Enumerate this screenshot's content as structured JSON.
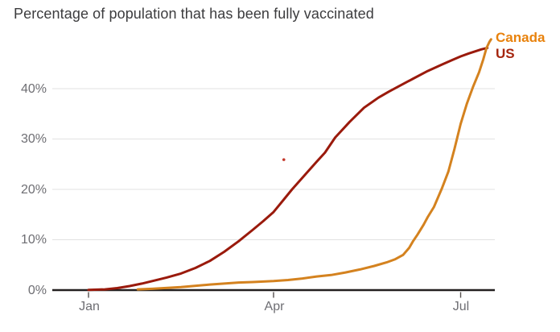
{
  "title": "Percentage of population that has been fully vaccinated",
  "colors": {
    "background": "#FFFFFF",
    "title_text": "#3C3C3E",
    "axis_label_text": "#6E6E73",
    "gridline": "#E2E2E2",
    "axis_line": "#232020",
    "tick_mark": "#55504E",
    "canada_label": "#E8820D",
    "canada_line": "#D4821F",
    "us_label": "#A5260F",
    "us_line": "#9A1A0C",
    "stray_dot": "#C4372B"
  },
  "chart_data": {
    "type": "line",
    "title": "Percentage of population that has been fully vaccinated",
    "xlabel": "",
    "ylabel": "",
    "point_format": "[days_since_jan1_2021, percent_fully_vaccinated]",
    "x_axis": {
      "tick_labels": [
        "Jan",
        "Apr",
        "Jul"
      ],
      "tick_days": [
        0,
        90,
        181
      ],
      "domain_days": [
        -17.6,
        197.6
      ]
    },
    "y_axis": {
      "tick_labels": [
        "0%",
        "10%",
        "20%",
        "30%",
        "40%"
      ],
      "tick_values": [
        0,
        10,
        20,
        30,
        40
      ],
      "range": [
        0,
        50
      ],
      "gridlines": true
    },
    "legend": {
      "position": "top-right",
      "entries": [
        "Canada",
        "US"
      ]
    },
    "series": [
      {
        "name": "Canada",
        "label_color": "#E8820D",
        "line_color": "#D4821F",
        "points": [
          [
            24,
            0.15
          ],
          [
            31,
            0.25
          ],
          [
            45,
            0.6
          ],
          [
            59,
            1.1
          ],
          [
            66,
            1.3
          ],
          [
            73,
            1.5
          ],
          [
            80,
            1.6
          ],
          [
            90,
            1.8
          ],
          [
            97,
            2.0
          ],
          [
            104,
            2.3
          ],
          [
            111,
            2.7
          ],
          [
            118,
            3.0
          ],
          [
            125,
            3.5
          ],
          [
            132,
            4.1
          ],
          [
            139,
            4.8
          ],
          [
            145,
            5.5
          ],
          [
            149,
            6.1
          ],
          [
            153,
            7.0
          ],
          [
            156,
            8.4
          ],
          [
            158,
            9.8
          ],
          [
            160,
            11.0
          ],
          [
            163,
            13.0
          ],
          [
            165,
            14.5
          ],
          [
            168,
            16.5
          ],
          [
            172,
            20.3
          ],
          [
            175,
            23.5
          ],
          [
            178,
            28.0
          ],
          [
            181,
            33.0
          ],
          [
            184,
            37.0
          ],
          [
            187,
            40.3
          ],
          [
            190,
            43.3
          ],
          [
            192,
            45.8
          ],
          [
            193.5,
            48.0
          ],
          [
            195,
            49.3
          ],
          [
            195.8,
            49.8
          ]
        ]
      },
      {
        "name": "US",
        "label_color": "#A5260F",
        "line_color": "#9A1A0C",
        "points": [
          [
            0,
            0.05
          ],
          [
            8,
            0.15
          ],
          [
            14,
            0.4
          ],
          [
            20,
            0.8
          ],
          [
            26,
            1.3
          ],
          [
            31,
            1.8
          ],
          [
            38,
            2.5
          ],
          [
            45,
            3.3
          ],
          [
            52,
            4.4
          ],
          [
            59,
            5.8
          ],
          [
            66,
            7.6
          ],
          [
            73,
            9.7
          ],
          [
            80,
            12.0
          ],
          [
            85,
            13.7
          ],
          [
            90,
            15.5
          ],
          [
            95,
            18.0
          ],
          [
            99,
            20.0
          ],
          [
            104,
            22.3
          ],
          [
            111,
            25.5
          ],
          [
            115,
            27.3
          ],
          [
            120,
            30.3
          ],
          [
            127,
            33.4
          ],
          [
            134,
            36.2
          ],
          [
            141,
            38.2
          ],
          [
            146,
            39.4
          ],
          [
            151,
            40.5
          ],
          [
            158,
            42.0
          ],
          [
            165,
            43.5
          ],
          [
            172,
            44.8
          ],
          [
            177,
            45.7
          ],
          [
            181,
            46.4
          ],
          [
            185,
            47.0
          ],
          [
            188,
            47.4
          ],
          [
            191,
            47.8
          ],
          [
            194,
            48.1
          ]
        ]
      }
    ],
    "stray_point": {
      "day": 95,
      "pct": 25.9,
      "color": "#C4372B"
    }
  }
}
